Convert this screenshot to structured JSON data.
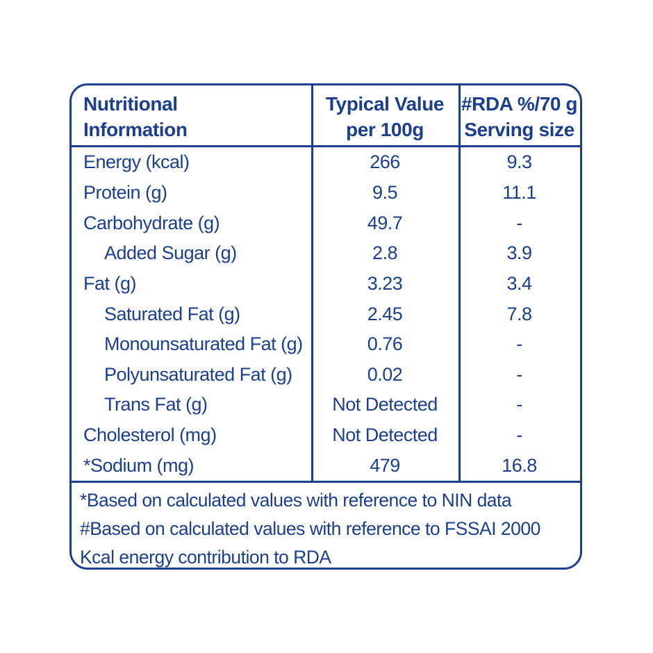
{
  "accent_color": "#1b3f8e",
  "background_color": "#ffffff",
  "table": {
    "header": {
      "col1": "Nutritional\nInformation",
      "col2": "Typical Value\nper 100g",
      "col3": "#RDA %/70 g\nServing size"
    },
    "rows": [
      {
        "label": "Energy (kcal)",
        "value": "266",
        "rda": "9.3"
      },
      {
        "label": "Protein (g)",
        "value": "9.5",
        "rda": "11.1"
      },
      {
        "label": "Carbohydrate (g)",
        "value": "49.7",
        "rda": "-"
      },
      {
        "label": "Added Sugar (g)",
        "value": "2.8",
        "rda": "3.9"
      },
      {
        "label": "Fat (g)",
        "value": "3.23",
        "rda": "3.4"
      },
      {
        "label": "Saturated Fat (g)",
        "value": "2.45",
        "rda": "7.8"
      },
      {
        "label": "Monounsaturated Fat (g)",
        "value": "0.76",
        "rda": "-"
      },
      {
        "label": "Polyunsaturated Fat (g)",
        "value": "0.02",
        "rda": "-"
      },
      {
        "label": "Trans Fat (g)",
        "value": "Not Detected",
        "rda": "-"
      },
      {
        "label": "Cholesterol (mg)",
        "value": "Not Detected",
        "rda": "-"
      },
      {
        "label": "*Sodium (mg)",
        "value": "479",
        "rda": "16.8"
      }
    ],
    "notes": [
      "*Based on calculated values with reference to NIN data",
      "#Based on calculated values with reference to FSSAI 2000 Kcal energy contribution to RDA"
    ]
  }
}
